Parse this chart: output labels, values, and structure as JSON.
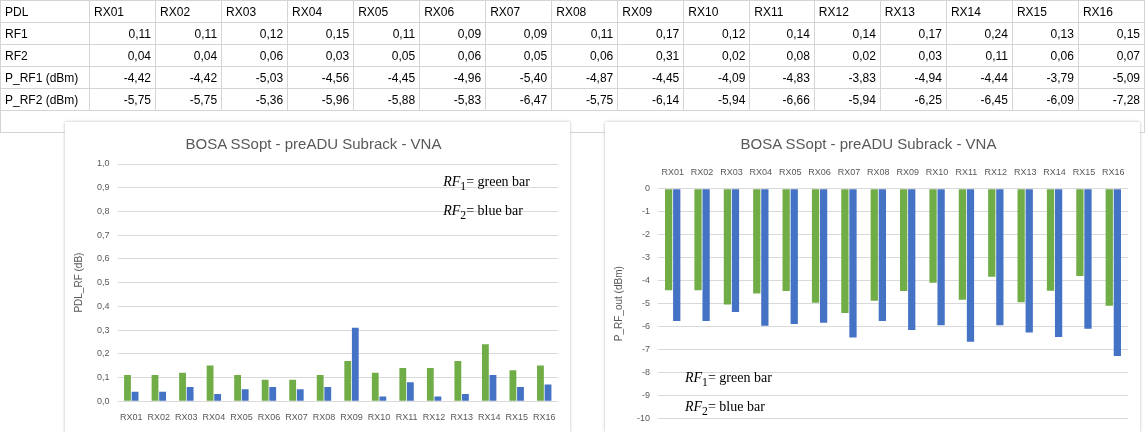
{
  "chart_data": [
    {
      "type": "heatmap",
      "title": "PDL",
      "categories": [
        "RX01",
        "RX02",
        "RX03",
        "RX04",
        "RX05",
        "RX06",
        "RX07",
        "RX08",
        "RX09",
        "RX10",
        "RX11",
        "RX12",
        "RX13",
        "RX14",
        "RX15",
        "RX16"
      ],
      "y_categories": [
        "RF1",
        "RF2",
        "P_RF1 (dBm)",
        "P_RF2 (dBm)"
      ],
      "cells": [
        [
          0.11,
          0.11,
          0.12,
          0.15,
          0.11,
          0.09,
          0.09,
          0.11,
          0.17,
          0.12,
          0.14,
          0.14,
          0.17,
          0.24,
          0.13,
          0.15
        ],
        [
          0.04,
          0.04,
          0.06,
          0.03,
          0.05,
          0.06,
          0.05,
          0.06,
          0.31,
          0.02,
          0.08,
          0.02,
          0.03,
          0.11,
          0.06,
          0.07
        ],
        [
          -4.42,
          -4.42,
          -5.03,
          -4.56,
          -4.45,
          -4.96,
          -5.4,
          -4.87,
          -4.45,
          -4.09,
          -4.83,
          -3.83,
          -4.94,
          -4.44,
          -3.79,
          -5.09
        ],
        [
          -5.75,
          -5.75,
          -5.36,
          -5.96,
          -5.88,
          -5.83,
          -6.47,
          -5.75,
          -6.14,
          -5.94,
          -6.66,
          -5.94,
          -6.25,
          -6.45,
          -6.09,
          -7.28
        ]
      ],
      "cell_labels": [
        [
          "0,11",
          "0,11",
          "0,12",
          "0,15",
          "0,11",
          "0,09",
          "0,09",
          "0,11",
          "0,17",
          "0,12",
          "0,14",
          "0,14",
          "0,17",
          "0,24",
          "0,13",
          "0,15"
        ],
        [
          "0,04",
          "0,04",
          "0,06",
          "0,03",
          "0,05",
          "0,06",
          "0,05",
          "0,06",
          "0,31",
          "0,02",
          "0,08",
          "0,02",
          "0,03",
          "0,11",
          "0,06",
          "0,07"
        ],
        [
          "-4,42",
          "-4,42",
          "-5,03",
          "-4,56",
          "-4,45",
          "-4,96",
          "-5,40",
          "-4,87",
          "-4,45",
          "-4,09",
          "-4,83",
          "-3,83",
          "-4,94",
          "-4,44",
          "-3,79",
          "-5,09"
        ],
        [
          "-5,75",
          "-5,75",
          "-5,36",
          "-5,96",
          "-5,88",
          "-5,83",
          "-6,47",
          "-5,75",
          "-6,14",
          "-5,94",
          "-6,66",
          "-5,94",
          "-6,25",
          "-6,45",
          "-6,09",
          "-7,28"
        ]
      ]
    },
    {
      "type": "bar",
      "title": "BOSA SSopt - preADU Subrack - VNA",
      "ylabel": "PDL_RF (dB)",
      "categories": [
        "RX01",
        "RX02",
        "RX03",
        "RX04",
        "RX05",
        "RX06",
        "RX07",
        "RX08",
        "RX09",
        "RX10",
        "RX11",
        "RX12",
        "RX13",
        "RX14",
        "RX15",
        "RX16"
      ],
      "series": [
        {
          "color": "#70ad47",
          "values": [
            0.11,
            0.11,
            0.12,
            0.15,
            0.11,
            0.09,
            0.09,
            0.11,
            0.17,
            0.12,
            0.14,
            0.14,
            0.17,
            0.24,
            0.13,
            0.15
          ]
        },
        {
          "color": "#4472c4",
          "values": [
            0.04,
            0.04,
            0.06,
            0.03,
            0.05,
            0.06,
            0.05,
            0.06,
            0.31,
            0.02,
            0.08,
            0.02,
            0.03,
            0.11,
            0.06,
            0.07
          ]
        }
      ],
      "ylim": [
        0,
        1
      ],
      "yticks": [
        {
          "value": 0,
          "label": "0,0"
        },
        {
          "value": 0.1,
          "label": "0,1"
        },
        {
          "value": 0.2,
          "label": "0,2"
        },
        {
          "value": 0.3,
          "label": "0,3"
        },
        {
          "value": 0.4,
          "label": "0,4"
        },
        {
          "value": 0.5,
          "label": "0,5"
        },
        {
          "value": 0.6,
          "label": "0,6"
        },
        {
          "value": 0.7,
          "label": "0,7"
        },
        {
          "value": 0.8,
          "label": "0,8"
        },
        {
          "value": 0.9,
          "label": "0,9"
        },
        {
          "value": 1,
          "label": "1,0"
        }
      ],
      "grid": "y",
      "annotations": [
        "RF$_{1}$= green bar",
        "RF$_{2}$= blue bar"
      ]
    },
    {
      "type": "bar",
      "title": "BOSA SSopt - preADU Subrack - VNA",
      "ylabel": "P_RF_out (dBm)",
      "categories": [
        "RX01",
        "RX02",
        "RX03",
        "RX04",
        "RX05",
        "RX06",
        "RX07",
        "RX08",
        "RX09",
        "RX10",
        "RX11",
        "RX12",
        "RX13",
        "RX14",
        "RX15",
        "RX16"
      ],
      "series": [
        {
          "color": "#70ad47",
          "values": [
            -4.42,
            -4.42,
            -5.03,
            -4.56,
            -4.45,
            -4.96,
            -5.4,
            -4.87,
            -4.45,
            -4.09,
            -4.83,
            -3.83,
            -4.94,
            -4.44,
            -3.79,
            -5.09
          ]
        },
        {
          "color": "#4472c4",
          "values": [
            -5.75,
            -5.75,
            -5.36,
            -5.96,
            -5.88,
            -5.83,
            -6.47,
            -5.75,
            -6.14,
            -5.94,
            -6.66,
            -5.94,
            -6.25,
            -6.45,
            -6.09,
            -7.28
          ]
        }
      ],
      "ylim": [
        -10,
        0
      ],
      "yticks": [
        0,
        -1,
        -2,
        -3,
        -4,
        -5,
        -6,
        -7,
        -8,
        -9,
        -10
      ],
      "grid": "y",
      "annotations": [
        "RF$_{1}$= green bar",
        "RF$_{2}$= blue bar"
      ]
    }
  ]
}
